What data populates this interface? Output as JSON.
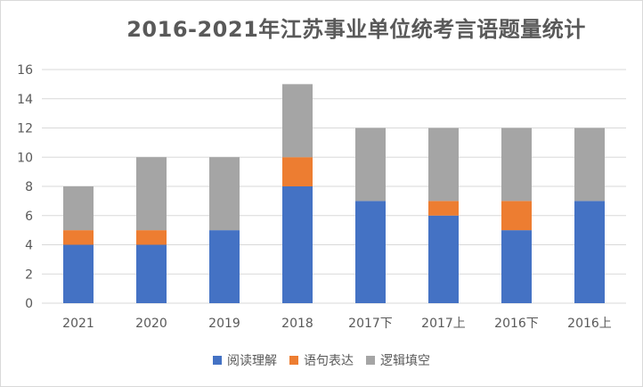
{
  "chart_data": {
    "type": "bar",
    "stacked": true,
    "title": "2016-2021年江苏事业单位统考言语题量统计",
    "categories": [
      "2021",
      "2020",
      "2019",
      "2018",
      "2017下",
      "2017上",
      "2016下",
      "2016上"
    ],
    "series": [
      {
        "name": "阅读理解",
        "color": "#4472c4",
        "values": [
          4,
          4,
          5,
          8,
          7,
          6,
          5,
          7
        ]
      },
      {
        "name": "语句表达",
        "color": "#ed7d31",
        "values": [
          1,
          1,
          0,
          2,
          0,
          1,
          2,
          0
        ]
      },
      {
        "name": "逻辑填空",
        "color": "#a5a5a5",
        "values": [
          3,
          5,
          5,
          5,
          5,
          5,
          5,
          5
        ]
      }
    ],
    "ylim": [
      0,
      16
    ],
    "yticks": [
      "0",
      "2",
      "4",
      "6",
      "8",
      "10",
      "12",
      "14",
      "16"
    ],
    "grid": true,
    "legend_position": "bottom"
  }
}
